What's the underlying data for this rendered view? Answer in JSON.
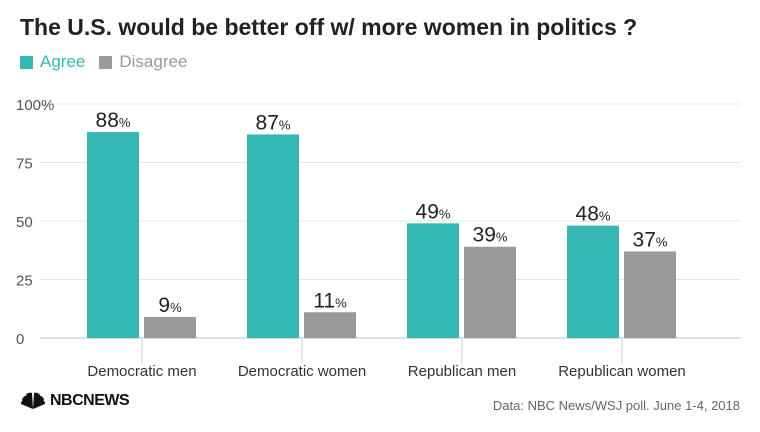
{
  "title": "The U.S. would be better off w/ more women in politics ?",
  "legend": {
    "agree_label": "Agree",
    "disagree_label": "Disagree"
  },
  "colors": {
    "agree": "#35b8b4",
    "disagree": "#9a9a9a",
    "grid": "#e4e4e4",
    "axis_text": "#555555",
    "label_text": "#222222"
  },
  "chart_data": {
    "type": "bar",
    "categories": [
      "Democratic men",
      "Democratic women",
      "Republican men",
      "Republican women"
    ],
    "series": [
      {
        "name": "Agree",
        "values": [
          88,
          87,
          49,
          48
        ]
      },
      {
        "name": "Disagree",
        "values": [
          9,
          11,
          39,
          37
        ]
      }
    ],
    "value_suffix": "%",
    "yticks": [
      "100%",
      "75",
      "50",
      "25",
      "0"
    ],
    "ylim": [
      0,
      100
    ],
    "grid": true,
    "legend_position": "top-left"
  },
  "footer": {
    "logo_text": "NBCNEWS",
    "source": "Data: NBC News/WSJ poll. June 1-4, 2018"
  }
}
